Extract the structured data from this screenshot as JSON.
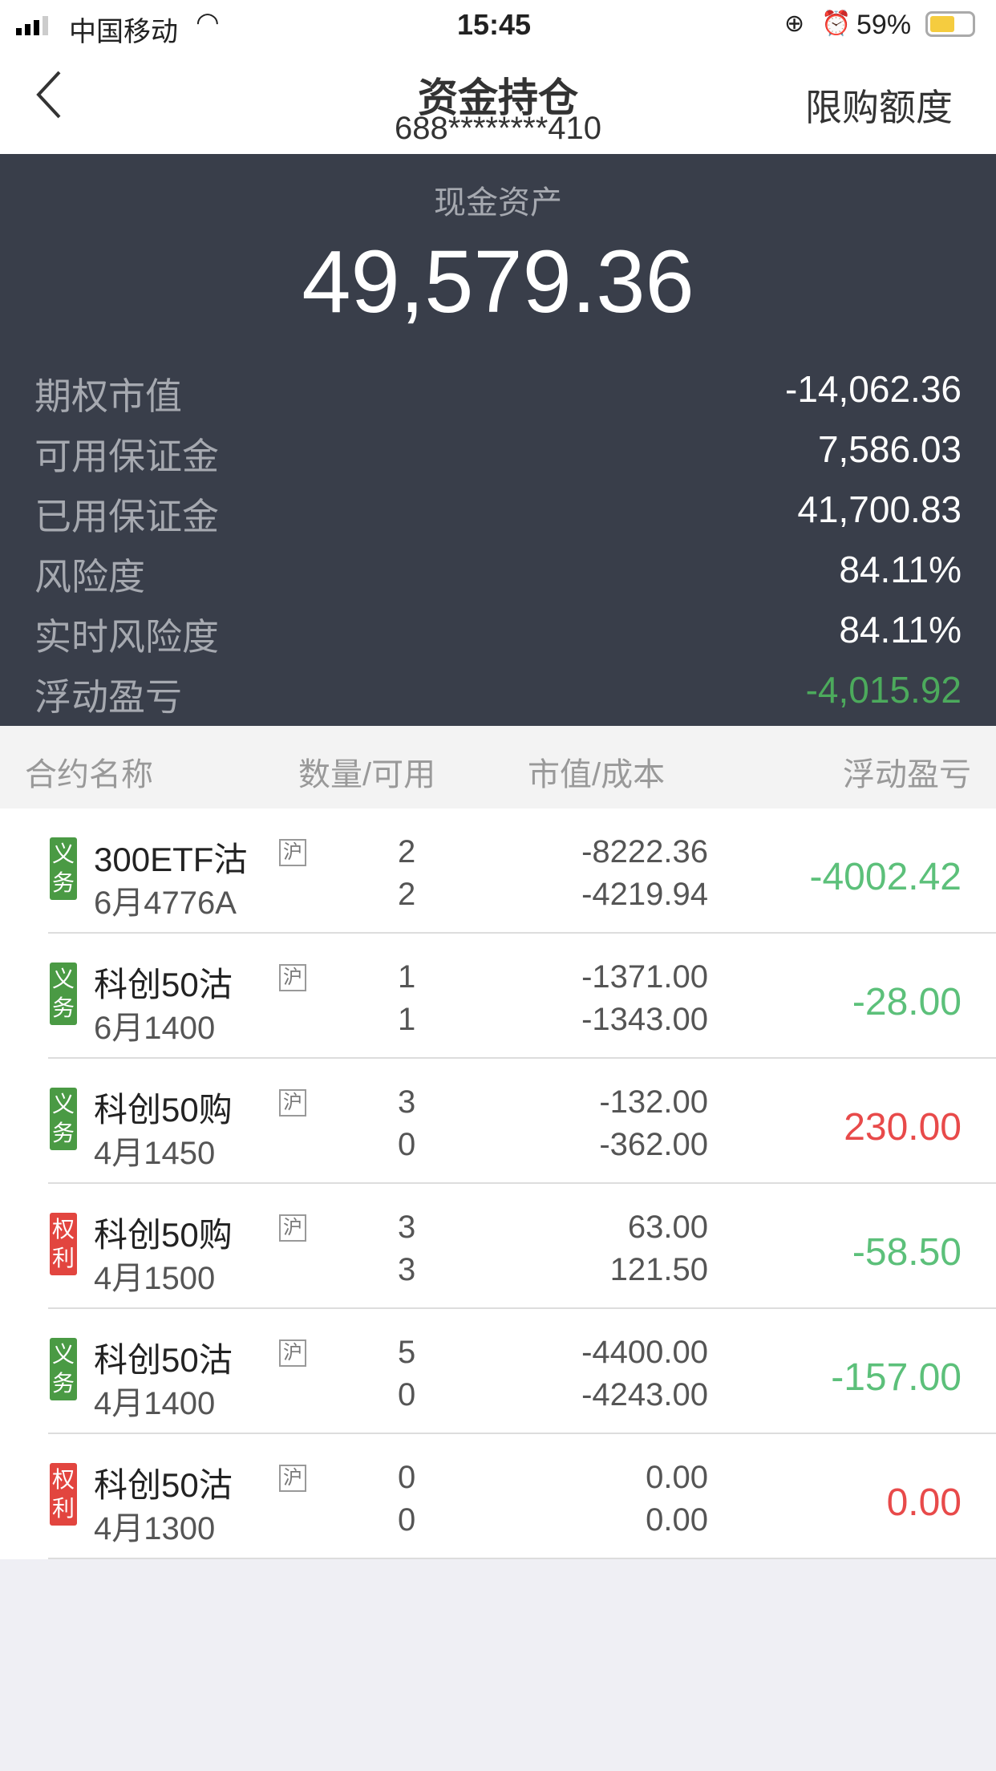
{
  "status_bar": {
    "carrier": "中国移动",
    "time": "15:45",
    "battery": "59%",
    "battery_level": 0.59
  },
  "nav": {
    "title": "资金持仓",
    "account": "688********410",
    "right_button": "限购额度"
  },
  "summary": {
    "cash_label": "现金资产",
    "cash_value": "49,579.36",
    "rows": [
      {
        "label": "期权市值",
        "value": "-14,062.36"
      },
      {
        "label": "可用保证金",
        "value": "7,586.03"
      },
      {
        "label": "已用保证金",
        "value": "41,700.83"
      },
      {
        "label": "风险度",
        "value": "84.11%"
      },
      {
        "label": "实时风险度",
        "value": "84.11%"
      },
      {
        "label": "浮动盈亏",
        "value": "-4,015.92"
      }
    ]
  },
  "table": {
    "headers": [
      "合约名称",
      "数量/可用",
      "市值/成本",
      "浮动盈亏"
    ],
    "rows": [
      {
        "type": "义务",
        "name": "300ETF沽",
        "code": "6月4776A",
        "exchange": "沪",
        "qty": "2",
        "avail": "2",
        "value": "-8222.36",
        "cost": "-4219.94",
        "pnl": "-4002.42"
      },
      {
        "type": "义务",
        "name": "科创50沽",
        "code": "6月1400",
        "exchange": "沪",
        "qty": "1",
        "avail": "1",
        "value": "-1371.00",
        "cost": "-1343.00",
        "pnl": "-28.00"
      },
      {
        "type": "义务",
        "name": "科创50购",
        "code": "4月1450",
        "exchange": "沪",
        "qty": "3",
        "avail": "0",
        "value": "-132.00",
        "cost": "-362.00",
        "pnl": "230.00"
      },
      {
        "type": "权利",
        "name": "科创50购",
        "code": "4月1500",
        "exchange": "沪",
        "qty": "3",
        "avail": "3",
        "value": "63.00",
        "cost": "121.50",
        "pnl": "-58.50"
      },
      {
        "type": "义务",
        "name": "科创50沽",
        "code": "4月1400",
        "exchange": "沪",
        "qty": "5",
        "avail": "0",
        "value": "-4400.00",
        "cost": "-4243.00",
        "pnl": "-157.00"
      },
      {
        "type": "权利",
        "name": "科创50沽",
        "code": "4月1300",
        "exchange": "沪",
        "qty": "0",
        "avail": "0",
        "value": "0.00",
        "cost": "0.00",
        "pnl": "0.00"
      }
    ]
  },
  "colors": {
    "panel": "#393e4a",
    "loss_green": "#5cc07a",
    "profit_red": "#e84a4a",
    "obligation_tag": "#4a9a44",
    "right_tag": "#e2453f"
  }
}
